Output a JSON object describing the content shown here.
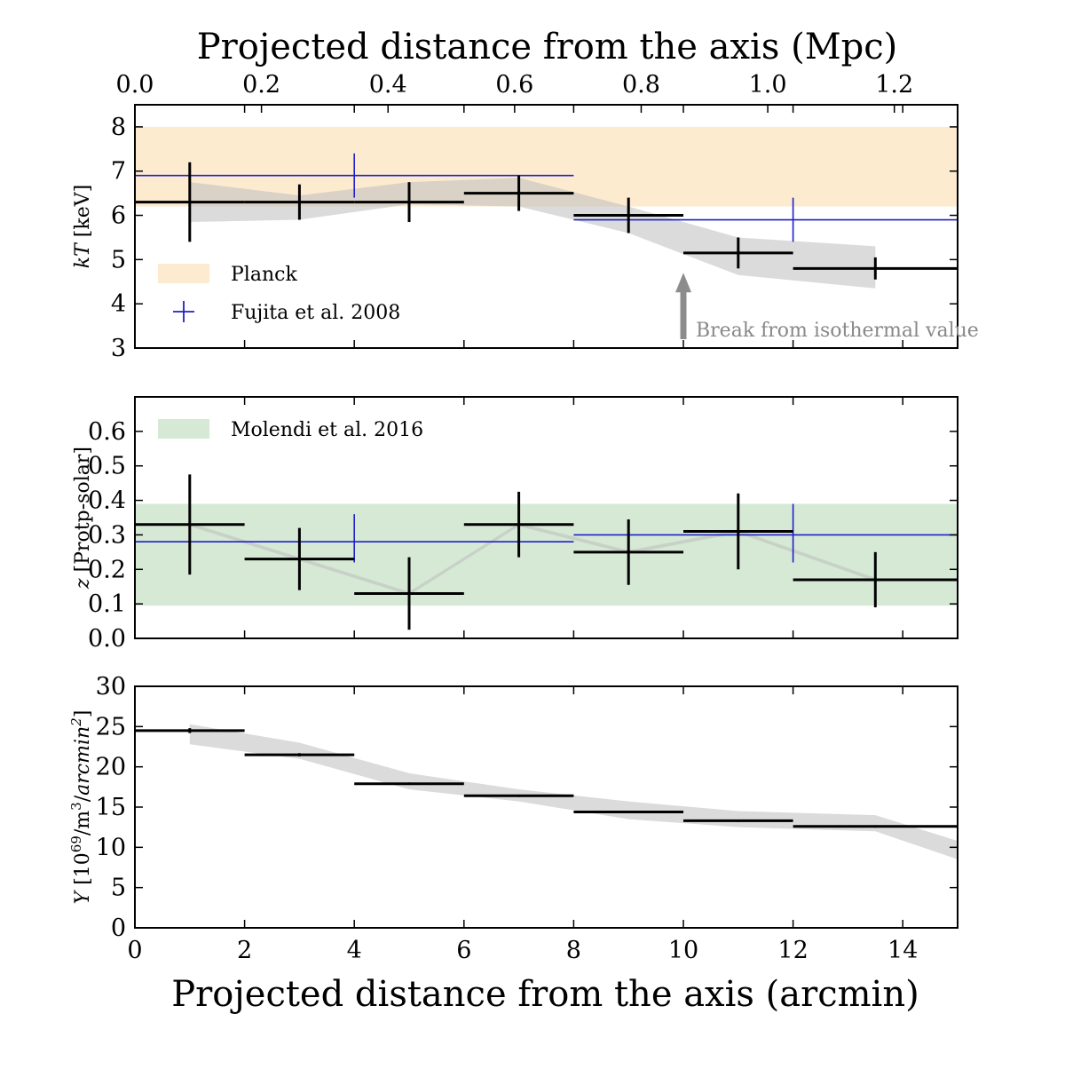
{
  "colors": {
    "fit_band": "#bdbdbd",
    "planck_band": "#fdebd0",
    "molendi_band": "#d5e9d4",
    "fujita": "#1f1fc8",
    "data": "#000000",
    "arrow": "#8c8c8c"
  },
  "chart_data": {
    "type": "scatter",
    "top_xlabel": "Projected distance from the axis (Mpc)",
    "top_xlim": [
      0.0,
      1.3
    ],
    "top_xticks": [
      "0.0",
      "0.2",
      "0.4",
      "0.6",
      "0.8",
      "1.0",
      "1.2"
    ],
    "xlabel": "Projected distance from the axis (arcmin)",
    "xlim": [
      0,
      15
    ],
    "xticks": [
      "0",
      "2",
      "4",
      "6",
      "8",
      "10",
      "12",
      "14"
    ],
    "panels": [
      {
        "name": "kT",
        "ylabel": "kT [keV]",
        "ylim": [
          3,
          8.5
        ],
        "yticks": [
          "3",
          "4",
          "5",
          "6",
          "7",
          "8"
        ],
        "bands": [
          {
            "name": "Planck",
            "y": [
              6.2,
              8.0
            ],
            "color": "#fdebd0"
          }
        ],
        "data": {
          "name": "data",
          "points": [
            {
              "x": 1.0,
              "xerr": 1.0,
              "y": 6.3,
              "yerr": 0.9
            },
            {
              "x": 3.0,
              "xerr": 1.0,
              "y": 6.3,
              "yerr": 0.4
            },
            {
              "x": 5.0,
              "xerr": 1.0,
              "y": 6.3,
              "yerr": 0.45
            },
            {
              "x": 7.0,
              "xerr": 1.0,
              "y": 6.5,
              "yerr": 0.4
            },
            {
              "x": 9.0,
              "xerr": 1.0,
              "y": 6.0,
              "yerr": 0.4
            },
            {
              "x": 11.0,
              "xerr": 1.0,
              "y": 5.15,
              "yerr": 0.35
            },
            {
              "x": 13.5,
              "xerr": 1.5,
              "y": 4.8,
              "yerr": 0.25
            }
          ]
        },
        "fit_band": {
          "x": [
            1,
            3,
            5,
            7,
            9,
            11,
            13.5
          ],
          "lower": [
            5.85,
            5.9,
            6.25,
            6.2,
            5.6,
            4.65,
            4.35
          ],
          "upper": [
            6.75,
            6.45,
            6.75,
            6.85,
            6.2,
            5.5,
            5.3
          ]
        },
        "reference": {
          "name": "Fujita et al. 2008",
          "points": [
            {
              "x": 2.0,
              "xerr": 2.0,
              "y": 6.9,
              "yerr": 0
            },
            {
              "x": 6.0,
              "xerr": 2.0,
              "y": 6.9,
              "yerr": 0
            },
            {
              "x": 10.0,
              "xerr": 2.0,
              "y": 5.9,
              "yerr": 0
            },
            {
              "x": 13.5,
              "xerr": 1.5,
              "y": 5.9,
              "yerr": 0
            }
          ],
          "edges": [
            {
              "x": 4.0,
              "y0": 6.4,
              "y1": 7.4
            },
            {
              "x": 12.0,
              "y0": 5.4,
              "y1": 6.4
            }
          ]
        },
        "legend": [
          "Planck",
          "Fujita et al. 2008"
        ],
        "annotation": {
          "text": "Break from isothermal value",
          "x": 10.0,
          "y": 4.7,
          "y_tail": 3.2
        }
      },
      {
        "name": "z",
        "ylabel": "z [Protp-solar]",
        "ylim": [
          0.0,
          0.7
        ],
        "yticks": [
          "0.0",
          "0.1",
          "0.2",
          "0.3",
          "0.4",
          "0.5",
          "0.6"
        ],
        "bands": [
          {
            "name": "Molendi et al. 2016",
            "y": [
              0.095,
              0.39
            ],
            "color": "#d5e9d4"
          }
        ],
        "data": {
          "name": "data",
          "points": [
            {
              "x": 1.0,
              "xerr": 1.0,
              "y": 0.33,
              "yerr": 0.145
            },
            {
              "x": 3.0,
              "xerr": 1.0,
              "y": 0.23,
              "yerr": 0.09
            },
            {
              "x": 5.0,
              "xerr": 1.0,
              "y": 0.13,
              "yerr": 0.105
            },
            {
              "x": 7.0,
              "xerr": 1.0,
              "y": 0.33,
              "yerr": 0.095
            },
            {
              "x": 9.0,
              "xerr": 1.0,
              "y": 0.25,
              "yerr": 0.095
            },
            {
              "x": 11.0,
              "xerr": 1.0,
              "y": 0.31,
              "yerr": 0.11
            },
            {
              "x": 13.5,
              "xerr": 1.5,
              "y": 0.17,
              "yerr": 0.08
            }
          ]
        },
        "fit_band": {
          "x": [
            1,
            3,
            5,
            7,
            9,
            11,
            13.5
          ],
          "lower": [
            0.325,
            0.225,
            0.125,
            0.325,
            0.245,
            0.305,
            0.165
          ],
          "upper": [
            0.335,
            0.235,
            0.135,
            0.335,
            0.255,
            0.315,
            0.175
          ]
        },
        "reference": {
          "name": "Fujita et al. 2008",
          "points": [
            {
              "x": 2.0,
              "xerr": 2.0,
              "y": 0.28,
              "yerr": 0
            },
            {
              "x": 6.0,
              "xerr": 2.0,
              "y": 0.28,
              "yerr": 0
            },
            {
              "x": 10.0,
              "xerr": 2.0,
              "y": 0.3,
              "yerr": 0
            },
            {
              "x": 13.5,
              "xerr": 1.5,
              "y": 0.3,
              "yerr": 0
            }
          ],
          "edges": [
            {
              "x": 4.0,
              "y0": 0.22,
              "y1": 0.36
            },
            {
              "x": 12.0,
              "y0": 0.22,
              "y1": 0.39
            }
          ]
        },
        "legend": [
          "Molendi et al. 2016"
        ]
      },
      {
        "name": "Y",
        "ylabel": "Y [10^69/m^3/arcmin^2]",
        "ylim": [
          0,
          30
        ],
        "yticks": [
          "0",
          "5",
          "10",
          "15",
          "20",
          "25",
          "30"
        ],
        "data": {
          "name": "data",
          "points": [
            {
              "x": 1.0,
              "xerr": 1.0,
              "y": 24.5,
              "yerr": 0.3
            },
            {
              "x": 3.0,
              "xerr": 1.0,
              "y": 21.5,
              "yerr": 0.2
            },
            {
              "x": 5.0,
              "xerr": 1.0,
              "y": 17.9,
              "yerr": 0.15
            },
            {
              "x": 7.0,
              "xerr": 1.0,
              "y": 16.4,
              "yerr": 0.15
            },
            {
              "x": 9.0,
              "xerr": 1.0,
              "y": 14.4,
              "yerr": 0.15
            },
            {
              "x": 11.0,
              "xerr": 1.0,
              "y": 13.3,
              "yerr": 0.15
            },
            {
              "x": 13.5,
              "xerr": 1.5,
              "y": 12.6,
              "yerr": 0.15
            }
          ]
        },
        "fit_band": {
          "x": [
            1,
            3,
            5,
            7,
            9,
            11,
            13.5,
            15
          ],
          "lower": [
            22.8,
            21.0,
            17.2,
            15.7,
            13.5,
            12.5,
            12.0,
            8.5
          ],
          "upper": [
            25.3,
            23.0,
            19.2,
            17.2,
            15.7,
            14.5,
            14.0,
            10.8
          ]
        }
      }
    ]
  }
}
